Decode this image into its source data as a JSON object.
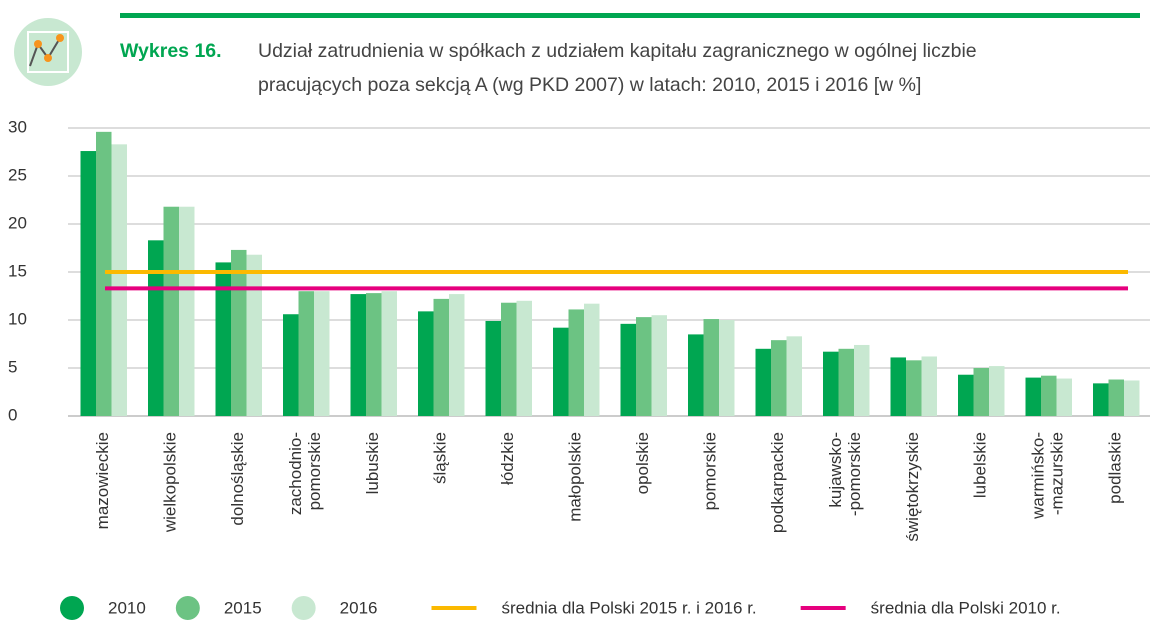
{
  "chart_data": {
    "type": "bar",
    "title_label": "Wykres 16.",
    "title": [
      "Udział zatrudnienia w spółkach z udziałem kapitału zagranicznego w ogólnej liczbie",
      "pracujących poza sekcją A (wg PKD 2007) w latach: 2010, 2015 i 2016 [w %]"
    ],
    "categories": [
      [
        "mazowieckie"
      ],
      [
        "wielkopolskie"
      ],
      [
        "dolnośląskie"
      ],
      [
        "zachodnio-",
        "pomorskie"
      ],
      [
        "lubuskie"
      ],
      [
        "śląskie"
      ],
      [
        "łódzkie"
      ],
      [
        "małopolskie"
      ],
      [
        "opolskie"
      ],
      [
        "pomorskie"
      ],
      [
        "podkarpackie"
      ],
      [
        "kujawsko-",
        "-pomorskie"
      ],
      [
        "świętokrzyskie"
      ],
      [
        "lubelskie"
      ],
      [
        "warmińsko-",
        "-mazurskie"
      ],
      [
        "podlaskie"
      ]
    ],
    "series": [
      {
        "name": "2010",
        "color": "#00a651",
        "values": [
          27.6,
          18.3,
          16.0,
          10.6,
          12.7,
          10.9,
          9.9,
          9.2,
          9.6,
          8.5,
          7.0,
          6.7,
          6.1,
          4.3,
          4.0,
          3.4
        ]
      },
      {
        "name": "2015",
        "color": "#6cc383",
        "values": [
          29.6,
          21.8,
          17.3,
          13.0,
          12.8,
          12.2,
          11.8,
          11.1,
          10.3,
          10.1,
          7.9,
          7.0,
          5.8,
          5.0,
          4.2,
          3.8
        ]
      },
      {
        "name": "2016",
        "color": "#c8e8d1",
        "values": [
          28.3,
          21.8,
          16.8,
          13.0,
          13.0,
          12.7,
          12.0,
          11.7,
          10.5,
          10.0,
          8.3,
          7.4,
          6.2,
          5.2,
          3.9,
          3.7
        ]
      }
    ],
    "reference_lines": [
      {
        "name": "średnia dla Polski 2015 r. i 2016 r.",
        "color": "#fbb900",
        "value": 15.0
      },
      {
        "name": "średnia dla Polski 2010 r.",
        "color": "#e6007e",
        "value": 13.3
      }
    ],
    "ylim": [
      0,
      30
    ],
    "yticks": [
      0,
      5,
      10,
      15,
      20,
      25,
      30
    ],
    "grid": true
  }
}
